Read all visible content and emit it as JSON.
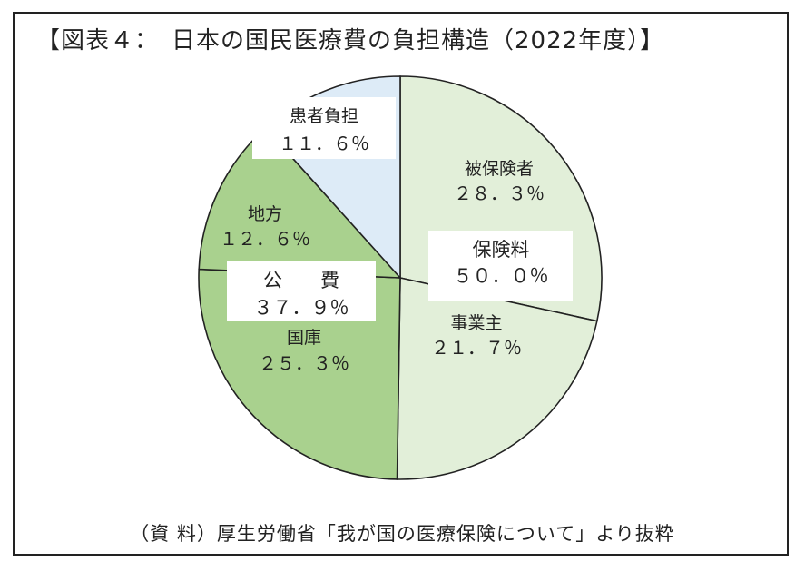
{
  "title": "【図表４：　日本の国民医療費の負担構造（2022年度）】",
  "source": "（資 料）厚生労働省「我が国の医療保険について」より抜粋",
  "colors": {
    "insurance": "#e2efd9",
    "public": "#a9d18e",
    "patient": "#ddebf7",
    "stroke": "#222222"
  },
  "chart_data": {
    "type": "pie",
    "unit": "%",
    "slices": [
      {
        "label": "被保険者",
        "value": 28.3,
        "value_text": "２８．３％",
        "group": "insurance"
      },
      {
        "label": "事業主",
        "value": 21.7,
        "value_text": "２１．７％",
        "group": "insurance"
      },
      {
        "label": "国庫",
        "value": 25.3,
        "value_text": "２５．３％",
        "group": "public"
      },
      {
        "label": "地方",
        "value": 12.6,
        "value_text": "１２．６％",
        "group": "public"
      },
      {
        "label": "患者負担",
        "value": 11.6,
        "value_text": "１１．６％",
        "group": "patient"
      }
    ],
    "groups": [
      {
        "id": "insurance",
        "label": "保険料",
        "value": 50.0,
        "value_text": "５０．０％"
      },
      {
        "id": "public",
        "label": "公　　費",
        "value": 37.9,
        "value_text": "３７．９％"
      }
    ]
  }
}
